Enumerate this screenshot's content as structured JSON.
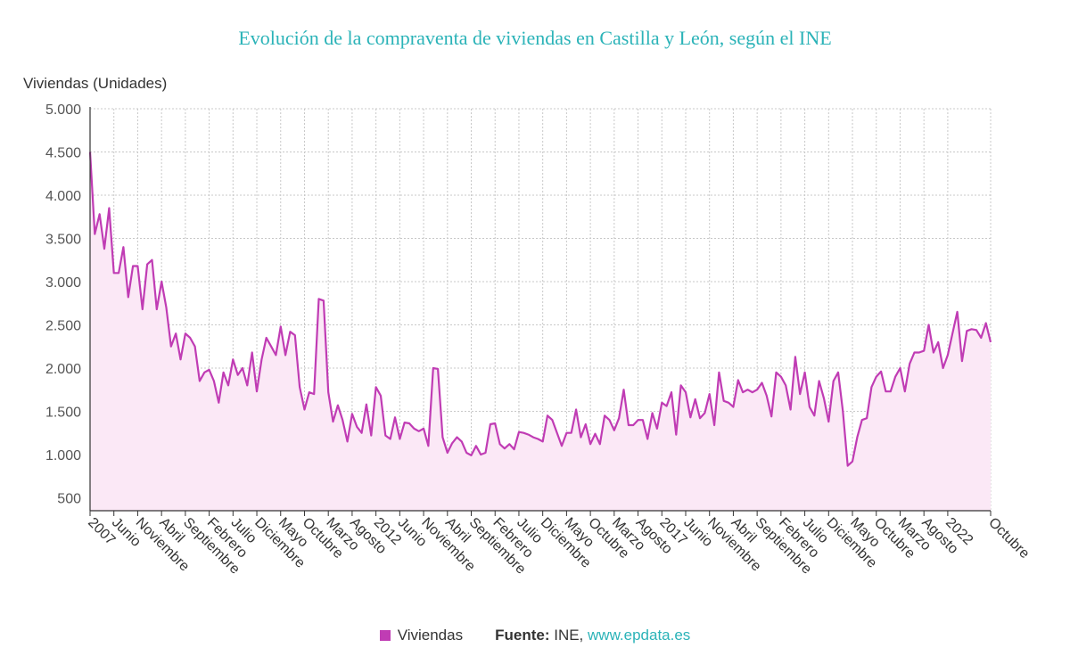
{
  "chart_data": {
    "type": "area",
    "title": "Evolución de la compraventa de viviendas en Castilla y León, según el INE",
    "ylabel": "Viviendas (Unidades)",
    "xlabel": "",
    "ylim": [
      350,
      5000
    ],
    "yticks": [
      {
        "value": 5000,
        "label": "5.000"
      },
      {
        "value": 4500,
        "label": "4.500"
      },
      {
        "value": 4000,
        "label": "4.000"
      },
      {
        "value": 3500,
        "label": "3.500"
      },
      {
        "value": 3000,
        "label": "3.000"
      },
      {
        "value": 2500,
        "label": "2.500"
      },
      {
        "value": 2000,
        "label": "2.000"
      },
      {
        "value": 1500,
        "label": "1.500"
      },
      {
        "value": 1000,
        "label": "1.000"
      },
      {
        "value": 500,
        "label": "500"
      }
    ],
    "xticks": [
      {
        "date": "2007-01",
        "label": "2007"
      },
      {
        "date": "2007-06",
        "label": "Junio"
      },
      {
        "date": "2007-11",
        "label": "Noviembre"
      },
      {
        "date": "2008-04",
        "label": "Abril"
      },
      {
        "date": "2008-09",
        "label": "Septiembre"
      },
      {
        "date": "2009-02",
        "label": "Febrero"
      },
      {
        "date": "2009-07",
        "label": "Julio"
      },
      {
        "date": "2009-12",
        "label": "Diciembre"
      },
      {
        "date": "2010-05",
        "label": "Mayo"
      },
      {
        "date": "2010-10",
        "label": "Octubre"
      },
      {
        "date": "2011-03",
        "label": "Marzo"
      },
      {
        "date": "2011-08",
        "label": "Agosto"
      },
      {
        "date": "2012-01",
        "label": "2012"
      },
      {
        "date": "2012-06",
        "label": "Junio"
      },
      {
        "date": "2012-11",
        "label": "Noviembre"
      },
      {
        "date": "2013-04",
        "label": "Abril"
      },
      {
        "date": "2013-09",
        "label": "Septiembre"
      },
      {
        "date": "2014-02",
        "label": "Febrero"
      },
      {
        "date": "2014-07",
        "label": "Julio"
      },
      {
        "date": "2014-12",
        "label": "Diciembre"
      },
      {
        "date": "2015-05",
        "label": "Mayo"
      },
      {
        "date": "2015-10",
        "label": "Octubre"
      },
      {
        "date": "2016-03",
        "label": "Marzo"
      },
      {
        "date": "2016-08",
        "label": "Agosto"
      },
      {
        "date": "2017-01",
        "label": "2017"
      },
      {
        "date": "2017-06",
        "label": "Junio"
      },
      {
        "date": "2017-11",
        "label": "Noviembre"
      },
      {
        "date": "2018-04",
        "label": "Abril"
      },
      {
        "date": "2018-09",
        "label": "Septiembre"
      },
      {
        "date": "2019-02",
        "label": "Febrero"
      },
      {
        "date": "2019-07",
        "label": "Julio"
      },
      {
        "date": "2019-12",
        "label": "Diciembre"
      },
      {
        "date": "2020-05",
        "label": "Mayo"
      },
      {
        "date": "2020-10",
        "label": "Octubre"
      },
      {
        "date": "2021-03",
        "label": "Marzo"
      },
      {
        "date": "2021-08",
        "label": "Agosto"
      },
      {
        "date": "2022-01",
        "label": "2022"
      },
      {
        "date": "2022-10",
        "label": "Octubre"
      }
    ],
    "grid": true,
    "legend_position": "bottom",
    "series": [
      {
        "name": "Viviendas",
        "color": "#c03cb4",
        "fill": "#fbe8f6",
        "start": "2007-01",
        "end": "2022-10",
        "values": [
          4500,
          3550,
          3780,
          3380,
          3850,
          3100,
          3100,
          3400,
          2820,
          3180,
          3180,
          2680,
          3200,
          3250,
          2680,
          3000,
          2700,
          2250,
          2400,
          2100,
          2400,
          2350,
          2250,
          1850,
          1950,
          1980,
          1850,
          1600,
          1950,
          1800,
          2100,
          1920,
          2000,
          1800,
          2180,
          1730,
          2100,
          2350,
          2250,
          2150,
          2480,
          2150,
          2420,
          2380,
          1780,
          1520,
          1720,
          1700,
          2800,
          2780,
          1720,
          1380,
          1570,
          1400,
          1150,
          1470,
          1320,
          1250,
          1580,
          1220,
          1780,
          1680,
          1220,
          1180,
          1430,
          1180,
          1370,
          1360,
          1300,
          1270,
          1300,
          1100,
          2000,
          1990,
          1200,
          1020,
          1130,
          1200,
          1150,
          1020,
          990,
          1100,
          1000,
          1020,
          1350,
          1360,
          1120,
          1070,
          1120,
          1060,
          1260,
          1250,
          1230,
          1200,
          1180,
          1150,
          1450,
          1400,
          1250,
          1100,
          1250,
          1250,
          1520,
          1200,
          1350,
          1120,
          1240,
          1120,
          1450,
          1400,
          1280,
          1420,
          1750,
          1340,
          1340,
          1400,
          1400,
          1180,
          1480,
          1300,
          1600,
          1560,
          1720,
          1230,
          1800,
          1720,
          1430,
          1640,
          1420,
          1480,
          1700,
          1340,
          1950,
          1620,
          1600,
          1550,
          1860,
          1720,
          1750,
          1720,
          1750,
          1830,
          1680,
          1440,
          1950,
          1900,
          1800,
          1520,
          2130,
          1700,
          1950,
          1550,
          1450,
          1850,
          1650,
          1380,
          1850,
          1950,
          1500,
          870,
          920,
          1200,
          1400,
          1420,
          1780,
          1900,
          1960,
          1730,
          1730,
          1900,
          2000,
          1730,
          2050,
          2180,
          2180,
          2200,
          2500,
          2180,
          2300,
          2000,
          2150,
          2400,
          2650,
          2080,
          2430,
          2450,
          2440,
          2350,
          2520,
          2300
        ]
      }
    ]
  },
  "legend": {
    "series_label": "Viviendas",
    "source_label": "Fuente:",
    "source_value": "INE,",
    "source_link": "www.epdata.es"
  }
}
